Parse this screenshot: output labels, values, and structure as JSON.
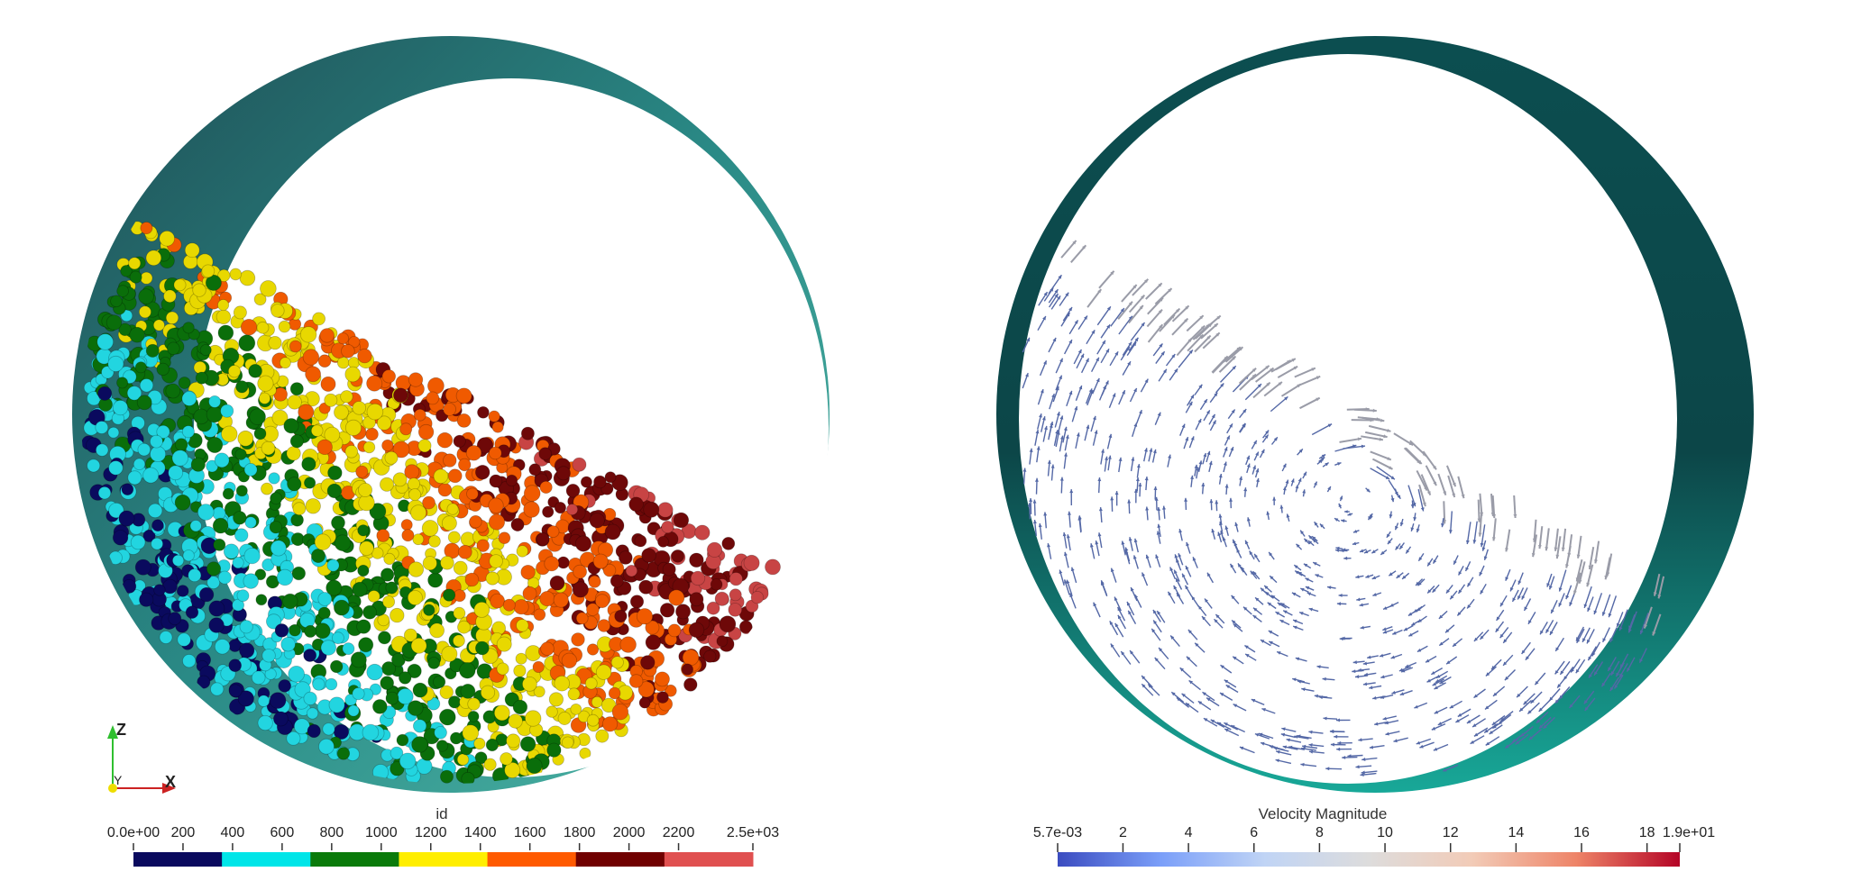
{
  "left_view": {
    "colorbar": {
      "title": "id",
      "tick_labels": [
        "0.0e+00",
        "200",
        "400",
        "600",
        "800",
        "1000",
        "1200",
        "1400",
        "1600",
        "1800",
        "2000",
        "2200",
        "2.5e+03"
      ],
      "bands": [
        "#0a0a5e",
        "#00e5e8",
        "#0a7a0a",
        "#ffee00",
        "#ff5a00",
        "#700000",
        "#e05050"
      ]
    },
    "orientation_axes": {
      "z": "Z",
      "y": "Y",
      "x": "X"
    },
    "particle_colors": [
      "#0a0a5e",
      "#22d5e0",
      "#0a6e0a",
      "#e8d800",
      "#f05a00",
      "#6e0808",
      "#c84444"
    ]
  },
  "right_view": {
    "colorbar": {
      "title": "Velocity Magnitude",
      "tick_labels": [
        "5.7e-03",
        "2",
        "4",
        "6",
        "8",
        "10",
        "12",
        "14",
        "16",
        "18",
        "1.9e+01"
      ],
      "gradient": [
        "#3b4cc0",
        "#7b9ff9",
        "#c0d4f5",
        "#dddcdc",
        "#f2cbb7",
        "#ee8468",
        "#b40426"
      ]
    }
  },
  "drum_color": "#1a6e6a"
}
